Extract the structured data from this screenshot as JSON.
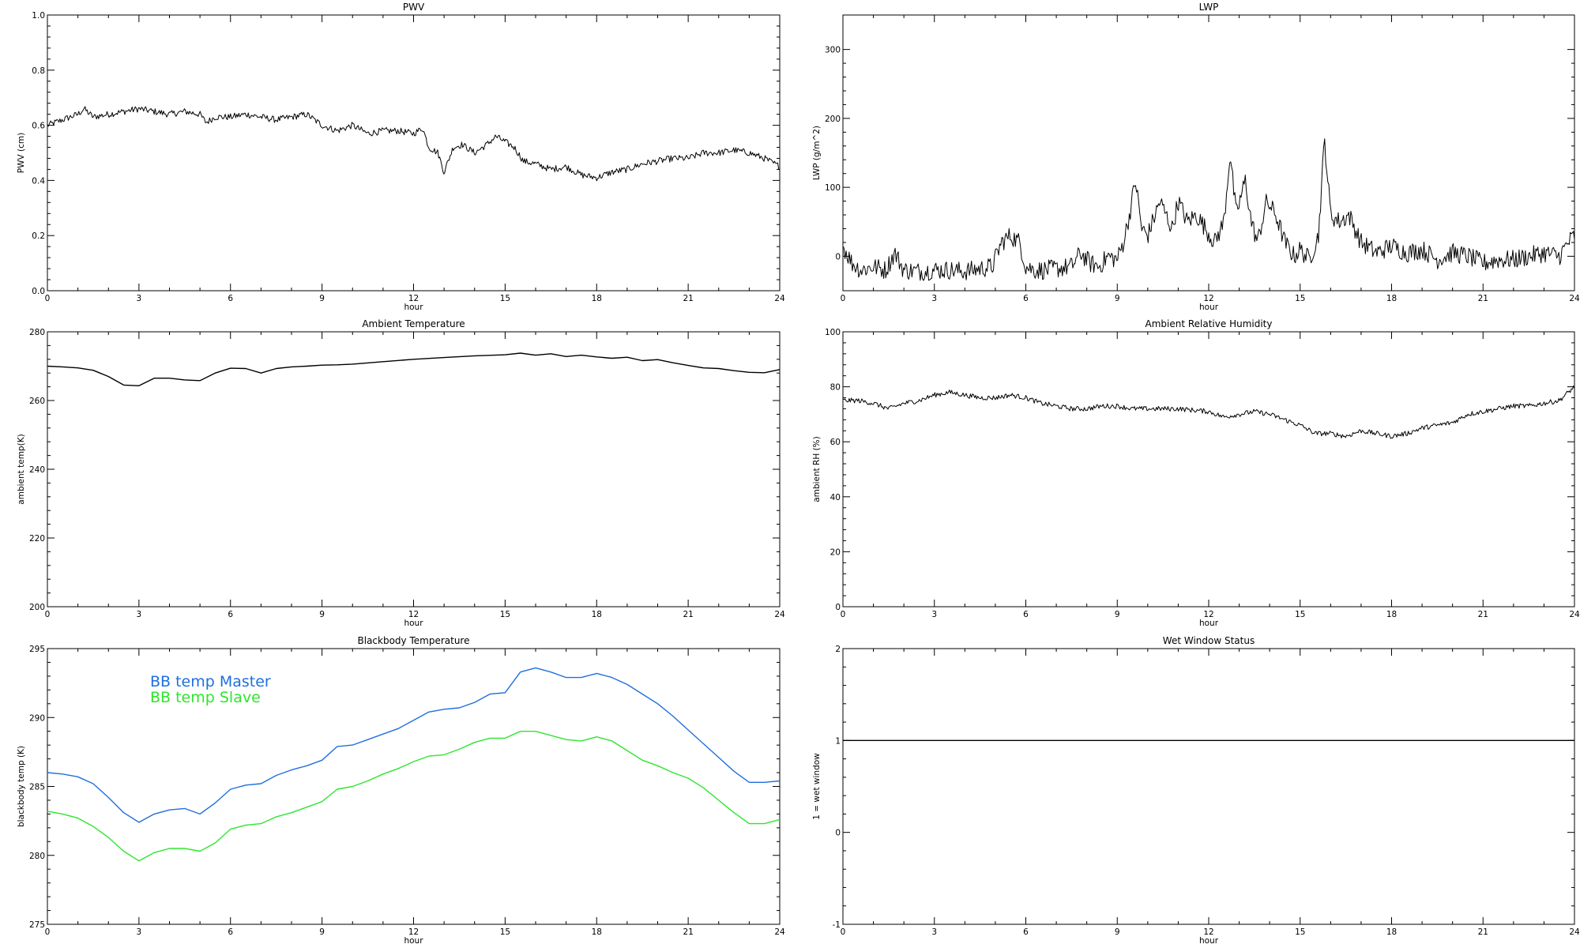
{
  "chart_data": [
    {
      "type": "line",
      "title": "PWV",
      "xlabel": "hour",
      "ylabel": "PWV (cm)",
      "xlim": [
        0,
        24
      ],
      "ylim": [
        0,
        1
      ],
      "xticks": [
        0,
        3,
        6,
        9,
        12,
        15,
        18,
        21,
        24
      ],
      "yticks": [
        "0.0",
        "0.2",
        "0.4",
        "0.6",
        "0.8",
        "1.0"
      ],
      "series": [
        {
          "color": "#000000",
          "style": "noisy",
          "x": [
            0,
            0.5,
            1.0,
            1.2,
            1.5,
            2.0,
            2.5,
            3.0,
            3.5,
            4.0,
            4.5,
            5.0,
            5.2,
            5.5,
            6.0,
            6.5,
            7.0,
            7.5,
            8.0,
            8.5,
            9.0,
            9.5,
            10.0,
            10.5,
            11.0,
            11.5,
            12.0,
            12.3,
            12.5,
            12.8,
            13.0,
            13.3,
            13.6,
            14.0,
            14.4,
            14.7,
            15.0,
            15.3,
            15.6,
            16.0,
            16.5,
            17.0,
            17.5,
            18.0,
            18.5,
            19.0,
            19.5,
            20.0,
            20.5,
            21.0,
            21.5,
            22.0,
            22.5,
            23.0,
            23.5,
            24.0
          ],
          "y": [
            0.6,
            0.62,
            0.64,
            0.66,
            0.63,
            0.64,
            0.65,
            0.66,
            0.65,
            0.64,
            0.65,
            0.64,
            0.61,
            0.63,
            0.63,
            0.64,
            0.63,
            0.62,
            0.63,
            0.64,
            0.6,
            0.58,
            0.6,
            0.57,
            0.58,
            0.58,
            0.57,
            0.59,
            0.52,
            0.5,
            0.43,
            0.52,
            0.53,
            0.5,
            0.53,
            0.56,
            0.54,
            0.52,
            0.47,
            0.46,
            0.44,
            0.45,
            0.42,
            0.41,
            0.43,
            0.44,
            0.46,
            0.47,
            0.48,
            0.48,
            0.5,
            0.5,
            0.51,
            0.5,
            0.48,
            0.45
          ],
          "noise": 0.012
        }
      ]
    },
    {
      "type": "line",
      "title": "LWP",
      "xlabel": "hour",
      "ylabel": "LWP (g/m^2)",
      "xlim": [
        0,
        24
      ],
      "ylim": [
        -50,
        350
      ],
      "xticks": [
        0,
        3,
        6,
        9,
        12,
        15,
        18,
        21,
        24
      ],
      "yticks": [
        "0",
        "100",
        "200",
        "300"
      ],
      "series": [
        {
          "color": "#000000",
          "style": "noisy",
          "x": [
            0,
            0.3,
            0.6,
            1.0,
            1.4,
            1.7,
            2.0,
            2.5,
            3.0,
            3.5,
            4.0,
            4.5,
            4.9,
            5.2,
            5.5,
            5.8,
            6.0,
            6.3,
            6.6,
            7.0,
            7.5,
            7.8,
            8.1,
            8.4,
            8.7,
            9.0,
            9.2,
            9.4,
            9.6,
            9.8,
            10.0,
            10.2,
            10.4,
            10.6,
            10.8,
            11.0,
            11.3,
            11.6,
            11.9,
            12.2,
            12.5,
            12.7,
            12.9,
            13.2,
            13.4,
            13.6,
            13.9,
            14.2,
            14.5,
            14.8,
            15.0,
            15.3,
            15.6,
            15.8,
            16.0,
            16.3,
            16.6,
            17.0,
            17.5,
            18.0,
            18.5,
            19.0,
            19.5,
            20.0,
            20.5,
            21.0,
            21.5,
            22.0,
            22.5,
            23.0,
            23.5,
            23.8,
            24.0
          ],
          "y": [
            15,
            -10,
            -20,
            -15,
            -20,
            5,
            -20,
            -22,
            -20,
            -20,
            -22,
            -18,
            -15,
            20,
            30,
            20,
            -15,
            -20,
            -20,
            -18,
            -15,
            5,
            -10,
            -15,
            0,
            -5,
            20,
            60,
            110,
            40,
            30,
            55,
            80,
            60,
            40,
            80,
            50,
            60,
            40,
            20,
            50,
            150,
            60,
            110,
            50,
            20,
            80,
            60,
            20,
            0,
            10,
            -5,
            30,
            170,
            60,
            50,
            60,
            20,
            5,
            15,
            5,
            10,
            -5,
            5,
            0,
            -10,
            -5,
            -5,
            0,
            5,
            0,
            20,
            30
          ],
          "noise": 14
        }
      ]
    },
    {
      "type": "line",
      "title": "Ambient Temperature",
      "xlabel": "hour",
      "ylabel": "ambient temp(K)",
      "xlim": [
        0,
        24
      ],
      "ylim": [
        200,
        280
      ],
      "xticks": [
        0,
        3,
        6,
        9,
        12,
        15,
        18,
        21,
        24
      ],
      "yticks": [
        "200",
        "220",
        "240",
        "260",
        "280"
      ],
      "series": [
        {
          "color": "#000000",
          "style": "smooth",
          "x": [
            0,
            0.5,
            1.0,
            1.5,
            2.0,
            2.5,
            3.0,
            3.5,
            4.0,
            4.5,
            5.0,
            5.5,
            6.0,
            6.5,
            7.0,
            7.5,
            8.0,
            8.5,
            9.0,
            9.5,
            10.0,
            11.0,
            12.0,
            13.0,
            14.0,
            15.0,
            15.5,
            16.0,
            16.5,
            17.0,
            17.5,
            18.0,
            18.5,
            19.0,
            19.5,
            20.0,
            20.5,
            21.0,
            21.5,
            22.0,
            22.5,
            23.0,
            23.5,
            24.0
          ],
          "y": [
            270,
            269.8,
            269.5,
            268.8,
            267,
            264.5,
            264.3,
            266.5,
            266.5,
            266,
            265.8,
            268,
            269.4,
            269.3,
            268,
            269.3,
            269.8,
            270,
            270.3,
            270.4,
            270.6,
            271.3,
            272,
            272.5,
            273,
            273.3,
            273.8,
            273.2,
            273.6,
            272.8,
            273.2,
            272.7,
            272.3,
            272.6,
            271.6,
            271.9,
            271,
            270.2,
            269.5,
            269.3,
            268.7,
            268.2,
            268.1,
            269
          ]
        }
      ]
    },
    {
      "type": "line",
      "title": "Ambient Relative Humidity",
      "xlabel": "hour",
      "ylabel": "ambient RH (%)",
      "xlim": [
        0,
        24
      ],
      "ylim": [
        0,
        100
      ],
      "xticks": [
        0,
        3,
        6,
        9,
        12,
        15,
        18,
        21,
        24
      ],
      "yticks": [
        "0",
        "20",
        "40",
        "60",
        "80",
        "100"
      ],
      "series": [
        {
          "color": "#000000",
          "style": "noisy",
          "x": [
            0,
            0.5,
            1.0,
            1.5,
            2.0,
            2.5,
            3.0,
            3.5,
            4.0,
            4.5,
            5.0,
            5.5,
            6.0,
            6.5,
            7.0,
            7.5,
            8.0,
            8.5,
            9.0,
            9.5,
            10.0,
            11.0,
            12.0,
            12.5,
            13.0,
            13.5,
            14.0,
            14.5,
            15.0,
            15.5,
            16.0,
            16.5,
            17.0,
            17.5,
            18.0,
            18.5,
            19.0,
            19.5,
            20.0,
            20.5,
            21.0,
            21.5,
            22.0,
            22.5,
            23.0,
            23.5,
            24.0
          ],
          "y": [
            75,
            75,
            74,
            72,
            74,
            75,
            77,
            78,
            77,
            76,
            76,
            77,
            76,
            74,
            73,
            72,
            72,
            73,
            73,
            72,
            72,
            72,
            71,
            69,
            70,
            71,
            70,
            68,
            66,
            63,
            63,
            62,
            64,
            63,
            62,
            63,
            65,
            66,
            67,
            70,
            71,
            72,
            73,
            73,
            74,
            75,
            80
          ],
          "noise": 0.9
        }
      ]
    },
    {
      "type": "line",
      "title": "Blackbody Temperature",
      "xlabel": "hour",
      "ylabel": "blackbody temp (K)",
      "xlim": [
        0,
        24
      ],
      "ylim": [
        275,
        295
      ],
      "xticks": [
        0,
        3,
        6,
        9,
        12,
        15,
        18,
        21,
        24
      ],
      "yticks": [
        "275",
        "280",
        "285",
        "290",
        "295"
      ],
      "legend": [
        "BB temp Master",
        "BB temp Slave"
      ],
      "series": [
        {
          "name": "BB temp Master",
          "color": "#1f6fe0",
          "style": "smooth",
          "x": [
            0,
            0.5,
            1.0,
            1.5,
            2.0,
            2.5,
            3.0,
            3.5,
            4.0,
            4.5,
            5.0,
            5.5,
            6.0,
            6.5,
            7.0,
            7.5,
            8.0,
            8.5,
            9.0,
            9.5,
            10.0,
            10.5,
            11.0,
            11.5,
            12.0,
            12.5,
            13.0,
            13.5,
            14.0,
            14.5,
            15.0,
            15.5,
            16.0,
            16.5,
            17.0,
            17.5,
            18.0,
            18.5,
            19.0,
            19.5,
            20.0,
            20.5,
            21.0,
            21.5,
            22.0,
            22.5,
            23.0,
            23.5,
            24.0
          ],
          "y": [
            286,
            285.9,
            285.7,
            285.2,
            284.2,
            283.1,
            282.4,
            283.0,
            283.3,
            283.4,
            283.0,
            283.8,
            284.8,
            285.1,
            285.2,
            285.8,
            286.2,
            286.5,
            286.9,
            287.9,
            288.0,
            288.4,
            288.8,
            289.2,
            289.8,
            290.4,
            290.6,
            290.7,
            291.1,
            291.7,
            291.8,
            293.3,
            293.6,
            293.3,
            292.9,
            292.9,
            293.2,
            292.9,
            292.4,
            291.7,
            291.0,
            290.1,
            289.1,
            288.1,
            287.1,
            286.1,
            285.3,
            285.3,
            285.4
          ]
        },
        {
          "name": "BB temp Slave",
          "color": "#2ee52e",
          "style": "smooth",
          "x": [
            0,
            0.5,
            1.0,
            1.5,
            2.0,
            2.5,
            3.0,
            3.5,
            4.0,
            4.5,
            5.0,
            5.5,
            6.0,
            6.5,
            7.0,
            7.5,
            8.0,
            8.5,
            9.0,
            9.5,
            10.0,
            10.5,
            11.0,
            11.5,
            12.0,
            12.5,
            13.0,
            13.5,
            14.0,
            14.5,
            15.0,
            15.5,
            16.0,
            16.5,
            17.0,
            17.5,
            18.0,
            18.5,
            19.0,
            19.5,
            20.0,
            20.5,
            21.0,
            21.5,
            22.0,
            22.5,
            23.0,
            23.5,
            24.0
          ],
          "y": [
            283.2,
            283.0,
            282.7,
            282.1,
            281.3,
            280.3,
            279.6,
            280.2,
            280.5,
            280.5,
            280.3,
            280.9,
            281.9,
            282.2,
            282.3,
            282.8,
            283.1,
            283.5,
            283.9,
            284.8,
            285.0,
            285.4,
            285.9,
            286.3,
            286.8,
            287.2,
            287.3,
            287.7,
            288.2,
            288.5,
            288.5,
            289.0,
            289.0,
            288.7,
            288.4,
            288.3,
            288.6,
            288.3,
            287.6,
            286.9,
            286.5,
            286.0,
            285.6,
            284.9,
            284.0,
            283.1,
            282.3,
            282.3,
            282.6
          ]
        }
      ]
    },
    {
      "type": "line",
      "title": "Wet Window Status",
      "xlabel": "hour",
      "ylabel": "1 = wet window",
      "xlim": [
        0,
        24
      ],
      "ylim": [
        -1,
        2
      ],
      "xticks": [
        0,
        3,
        6,
        9,
        12,
        15,
        18,
        21,
        24
      ],
      "yticks": [
        "-1",
        "0",
        "1",
        "2"
      ],
      "series": [
        {
          "color": "#000000",
          "style": "smooth",
          "x": [
            0,
            24
          ],
          "y": [
            1,
            1
          ]
        }
      ]
    }
  ]
}
